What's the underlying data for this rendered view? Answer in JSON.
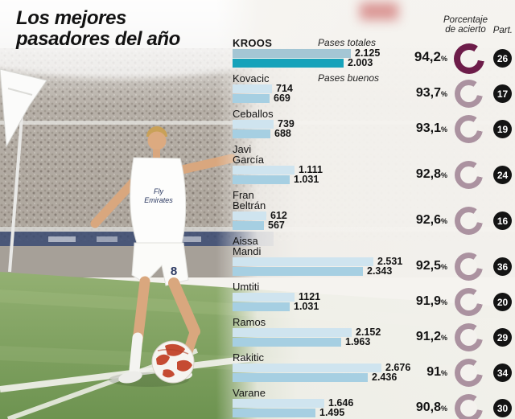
{
  "title": {
    "line1": "Los mejores",
    "line2": "pasadores del año"
  },
  "headers": {
    "accuracy_line1": "Porcentaje",
    "accuracy_line2": "de acierto",
    "participation": "Part."
  },
  "labels": {
    "percent_sign": "%",
    "series_totales": "Pases totales",
    "series_buenos": "Pases buenos"
  },
  "photo": {
    "jersey_sponsor_line1": "Fly",
    "jersey_sponsor_line2": "Emirates",
    "shorts_number": "8"
  },
  "colors": {
    "bar_totales": "#cfe4ef",
    "bar_buenos": "#a6cfe2",
    "kroos_totales": "#a4c6d4",
    "kroos_buenos": "#16a2ba",
    "donut": "#ab92a0",
    "donut_highlight": "#6d1c49",
    "badge_bg": "#141414",
    "badge_text": "#ffffff"
  },
  "chart_data": {
    "type": "bar",
    "orientation": "horizontal",
    "title": "Los mejores pasadores del año",
    "series_labels": [
      "Pases totales",
      "Pases buenos"
    ],
    "value_scale_max": 2676,
    "players": [
      {
        "name_lines": [
          "KROOS"
        ],
        "pases_totales": 2125,
        "pases_buenos": 2003,
        "totales_label": "2.125",
        "buenos_label": "2.003",
        "accuracy_pct": 94.2,
        "accuracy_label": "94,2",
        "part": "26",
        "highlight": true
      },
      {
        "name_lines": [
          "Kovacic"
        ],
        "pases_totales": 714,
        "pases_buenos": 669,
        "totales_label": "714",
        "buenos_label": "669",
        "accuracy_pct": 93.7,
        "accuracy_label": "93,7",
        "part": "17",
        "highlight": false
      },
      {
        "name_lines": [
          "Ceballos"
        ],
        "pases_totales": 739,
        "pases_buenos": 688,
        "totales_label": "739",
        "buenos_label": "688",
        "accuracy_pct": 93.1,
        "accuracy_label": "93,1",
        "part": "19",
        "highlight": false
      },
      {
        "name_lines": [
          "Javi",
          "García"
        ],
        "pases_totales": 1111,
        "pases_buenos": 1031,
        "totales_label": "1.111",
        "buenos_label": "1.031",
        "accuracy_pct": 92.8,
        "accuracy_label": "92,8",
        "part": "24",
        "highlight": false
      },
      {
        "name_lines": [
          "Fran",
          "Beltrán"
        ],
        "pases_totales": 612,
        "pases_buenos": 567,
        "totales_label": "612",
        "buenos_label": "567",
        "accuracy_pct": 92.6,
        "accuracy_label": "92,6",
        "part": "16",
        "highlight": false
      },
      {
        "name_lines": [
          "Aissa",
          "Mandi"
        ],
        "pases_totales": 2531,
        "pases_buenos": 2343,
        "totales_label": "2.531",
        "buenos_label": "2.343",
        "accuracy_pct": 92.5,
        "accuracy_label": "92,5",
        "part": "36",
        "highlight": false
      },
      {
        "name_lines": [
          "Umtiti"
        ],
        "pases_totales": 1121,
        "pases_buenos": 1031,
        "totales_label": "1121",
        "buenos_label": "1.031",
        "accuracy_pct": 91.9,
        "accuracy_label": "91,9",
        "part": "20",
        "highlight": false
      },
      {
        "name_lines": [
          "Ramos"
        ],
        "pases_totales": 2152,
        "pases_buenos": 1963,
        "totales_label": "2.152",
        "buenos_label": "1.963",
        "accuracy_pct": 91.2,
        "accuracy_label": "91,2",
        "part": "29",
        "highlight": false
      },
      {
        "name_lines": [
          "Rakitic"
        ],
        "pases_totales": 2676,
        "pases_buenos": 2436,
        "totales_label": "2.676",
        "buenos_label": "2.436",
        "accuracy_pct": 91.0,
        "accuracy_label": "91",
        "part": "34",
        "highlight": false
      },
      {
        "name_lines": [
          "Varane"
        ],
        "pases_totales": 1646,
        "pases_buenos": 1495,
        "totales_label": "1.646",
        "buenos_label": "1.495",
        "accuracy_pct": 90.8,
        "accuracy_label": "90,8",
        "part": "30",
        "highlight": false
      }
    ]
  }
}
